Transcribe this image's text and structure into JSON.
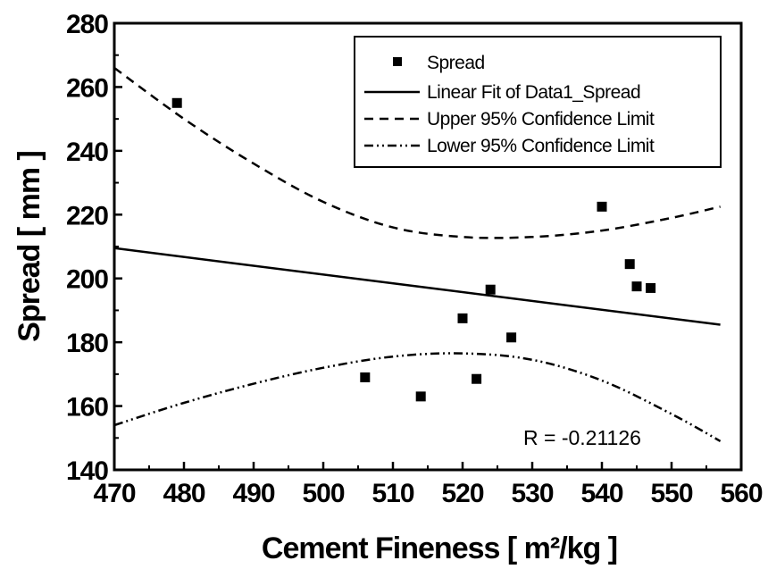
{
  "chart_data": {
    "type": "scatter",
    "title": "",
    "xlabel": "Cement Fineness [ m²/kg ]",
    "ylabel": "Spread [ mm ]",
    "xlim": [
      470,
      560
    ],
    "ylim": [
      140,
      280
    ],
    "x_ticks": [
      470,
      480,
      490,
      500,
      510,
      520,
      530,
      540,
      550,
      560
    ],
    "y_ticks": [
      140,
      160,
      180,
      200,
      220,
      240,
      260,
      280
    ],
    "grid": false,
    "legend_position": "top-right",
    "series": [
      {
        "name": "Spread",
        "kind": "points",
        "x": [
          479,
          506,
          514,
          520,
          522,
          524,
          527,
          540,
          544,
          545,
          547
        ],
        "y": [
          255,
          169,
          163,
          187.5,
          168.5,
          196.5,
          181.5,
          222.5,
          204.5,
          197.5,
          197
        ]
      },
      {
        "name": "Linear Fit of Data1_Spread",
        "kind": "line",
        "style": "solid",
        "x": [
          470,
          557
        ],
        "y": [
          209.5,
          185.5
        ]
      },
      {
        "name": "Upper 95% Confidence Limit",
        "kind": "line",
        "style": "dashed",
        "x": [
          470,
          480,
          490,
          500,
          510,
          520,
          530,
          540,
          550,
          557
        ],
        "y": [
          266,
          250,
          236,
          224,
          216,
          213,
          213,
          215,
          219,
          222.5
        ]
      },
      {
        "name": "Lower 95% Confidence Limit",
        "kind": "line",
        "style": "dash-dot-dot",
        "x": [
          470,
          480,
          490,
          500,
          510,
          520,
          530,
          540,
          550,
          557
        ],
        "y": [
          154,
          161,
          167,
          172,
          175.5,
          176.5,
          174.5,
          168,
          157.5,
          149
        ]
      }
    ],
    "annotation": "R = -0.21126"
  }
}
